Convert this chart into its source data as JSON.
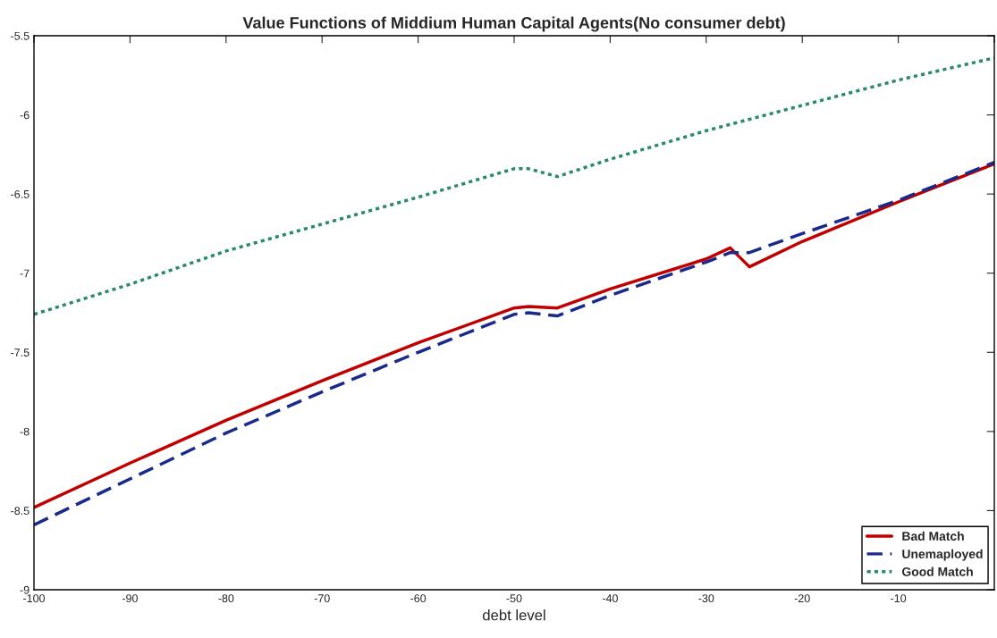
{
  "chart_data": {
    "type": "line",
    "title": "Value Functions of Middium Human Capital Agents(No consumer debt)",
    "xlabel": "debt level",
    "xlim": [
      -100,
      0
    ],
    "xticks": [
      -100,
      -90,
      -80,
      -70,
      -60,
      -50,
      -40,
      -30,
      -20,
      -10,
      {
        "value": 0,
        "label": null
      }
    ],
    "ylim": [
      -9,
      -5.5
    ],
    "yticks": [
      -9,
      -8.5,
      -8,
      -7.5,
      -7,
      -6.5,
      -6,
      -5.5
    ],
    "grid": false,
    "legend": "bottom right",
    "marker": "none",
    "series": [
      {
        "name": "Bad Match",
        "color": "#c00000",
        "line_style": "solid",
        "x": [
          -100,
          -90,
          -80,
          -70,
          -60,
          -50,
          -48.5,
          -45.5,
          -40,
          -30,
          -27.5,
          -25.5,
          -20,
          -10,
          0
        ],
        "values": [
          -8.48,
          -8.2,
          -7.93,
          -7.68,
          -7.44,
          -7.22,
          -7.21,
          -7.22,
          -7.1,
          -6.91,
          -6.84,
          -6.96,
          -6.8,
          -6.55,
          -6.31
        ]
      },
      {
        "name": "Unemaployed",
        "color": "#1a2a8a",
        "line_style": "dashed",
        "x": [
          -100,
          -90,
          -80,
          -70,
          -60,
          -50,
          -48.5,
          -45.5,
          -40,
          -30,
          -27.5,
          -25.5,
          -20,
          -10,
          0
        ],
        "values": [
          -8.59,
          -8.3,
          -8.01,
          -7.75,
          -7.5,
          -7.26,
          -7.25,
          -7.27,
          -7.14,
          -6.93,
          -6.87,
          -6.87,
          -6.75,
          -6.54,
          -6.3
        ]
      },
      {
        "name": "Good Match",
        "color": "#2a8a6a",
        "line_style": "dotted",
        "x": [
          -100,
          -90,
          -80,
          -70,
          -60,
          -50,
          -48.5,
          -45.5,
          -40,
          -30,
          -20,
          -10,
          0
        ],
        "values": [
          -7.26,
          -7.07,
          -6.86,
          -6.69,
          -6.52,
          -6.34,
          -6.34,
          -6.39,
          -6.28,
          -6.1,
          -5.94,
          -5.78,
          -5.64
        ]
      }
    ]
  }
}
